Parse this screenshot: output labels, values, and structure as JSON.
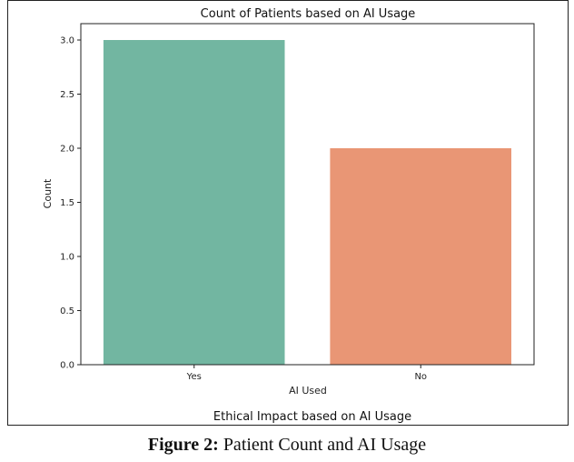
{
  "chart_data": {
    "type": "bar",
    "title": "Count of Patients based on AI Usage",
    "xlabel": "AI Used",
    "ylabel": "Count",
    "categories": [
      "Yes",
      "No"
    ],
    "values": [
      3.0,
      2.0
    ],
    "colors": [
      "#72b6a1",
      "#e99675"
    ],
    "ylim": [
      0,
      3.0
    ],
    "yticks": [
      "0.0",
      "0.5",
      "1.0",
      "1.5",
      "2.0",
      "2.5",
      "3.0"
    ],
    "ytick_values": [
      0,
      0.5,
      1.0,
      1.5,
      2.0,
      2.5,
      3.0
    ],
    "grid": false,
    "legend": "none"
  },
  "under_chart_caption": "Ethical Impact based on AI Usage",
  "figure_caption": {
    "label": "Figure 2:",
    "text": " Patient Count and AI Usage"
  }
}
